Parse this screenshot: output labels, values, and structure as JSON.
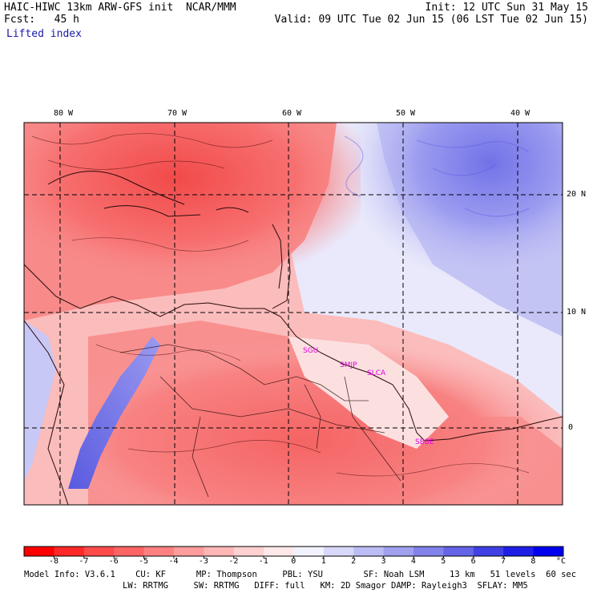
{
  "header": {
    "model_title": "HAIC-HIWC 13km ARW-GFS init",
    "org": "NCAR/MMM",
    "init": "Init: 12 UTC Sun 31 May 15",
    "fcst_label": "Fcst:",
    "fcst_value": "45 h",
    "valid": "Valid: 09 UTC Tue 02 Jun 15 (06 LST Tue 02 Jun 15)",
    "field": "Lifted index"
  },
  "map": {
    "lon_labels": [
      "80 W",
      "70 W",
      "60 W",
      "50 W",
      "40 W"
    ],
    "lat_labels": [
      "20 N",
      "10 N",
      "0"
    ],
    "stations": [
      "SGU",
      "SMJP",
      "SLCA",
      "SBBE"
    ],
    "colors": {
      "warm_dark": "#ff1e1e",
      "warm_mid": "#f87a7a",
      "neutral": "#ffffff",
      "cool_mid": "#8c8cf0",
      "cool_dark": "#0000e6",
      "station": "#e000e0"
    }
  },
  "colorbar": {
    "labels": [
      "-8",
      "-7",
      "-6",
      "-5",
      "-4",
      "-3",
      "-2",
      "-1",
      "0",
      "1",
      "2",
      "3",
      "4",
      "5",
      "6",
      "7",
      "8"
    ],
    "unit": "°C",
    "colors": [
      "#ff0000",
      "#ff2828",
      "#ff4a4a",
      "#ff6464",
      "#ff8080",
      "#ff9c9c",
      "#ffb6b6",
      "#ffd0d0",
      "#ffe8e8",
      "#f2f2ff",
      "#d8d8fa",
      "#bcbcf4",
      "#a0a0ee",
      "#8282ea",
      "#6464e6",
      "#4040e4",
      "#1e1ee6",
      "#0000ee"
    ]
  },
  "footer": {
    "line1": "Model Info: V3.6.1    CU: KF      MP: Thompson     PBL: YSU        SF: Noah LSM     13 km   51 levels  60 sec",
    "line2": "LW: RRTMG     SW: RRTMG   DIFF: full   KM: 2D Smagor DAMP: Rayleigh3  SFLAY: MM5"
  }
}
